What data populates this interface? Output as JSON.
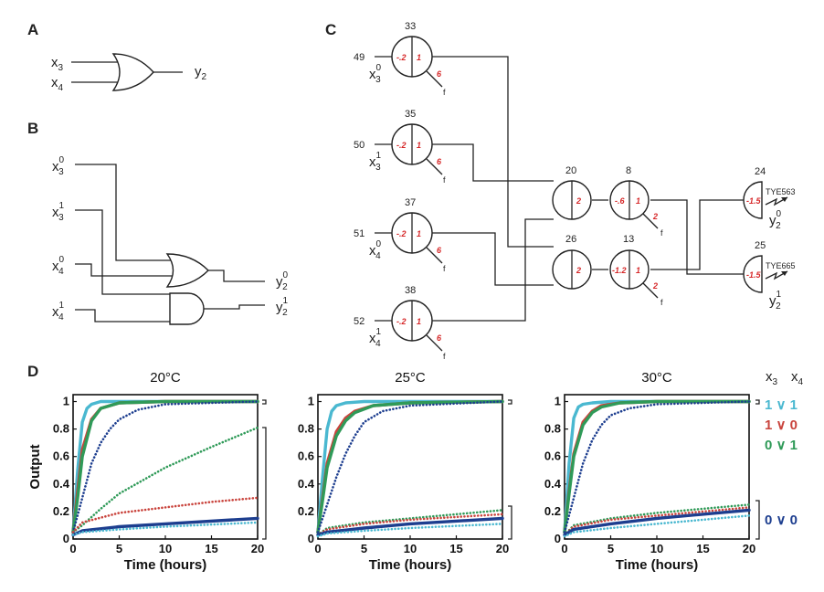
{
  "panels": {
    "a": "A",
    "b": "B",
    "c": "C",
    "d": "D"
  },
  "panel_a": {
    "in1": "x",
    "in1_sub": "3",
    "in2": "x",
    "in2_sub": "4",
    "out": "y",
    "out_sub": "2"
  },
  "panel_b": {
    "var": "x",
    "out_var": "y",
    "in1_sup": "0",
    "in1_sub": "3",
    "in2_sup": "1",
    "in2_sub": "3",
    "in3_sup": "0",
    "in3_sub": "4",
    "in4_sup": "1",
    "in4_sub": "4",
    "out1_sup": "0",
    "out1_sub": "2",
    "out2_sup": "1",
    "out2_sub": "2"
  },
  "panel_c": {
    "f": "f",
    "input_gates": [
      {
        "id": "33",
        "idx": "49",
        "left": "-.2",
        "right": "1",
        "w": "6",
        "sup": "0",
        "sub": "3"
      },
      {
        "id": "35",
        "idx": "50",
        "left": "-.2",
        "right": "1",
        "w": "6",
        "sup": "1",
        "sub": "3"
      },
      {
        "id": "37",
        "idx": "51",
        "left": "-.2",
        "right": "1",
        "w": "6",
        "sup": "0",
        "sub": "4"
      },
      {
        "id": "38",
        "idx": "52",
        "left": "-.2",
        "right": "1",
        "w": "6",
        "sup": "1",
        "sub": "4"
      }
    ],
    "mid_gates": [
      {
        "id": "20",
        "right": "2"
      },
      {
        "id": "26",
        "right": "2"
      }
    ],
    "right_gates": [
      {
        "id": "8",
        "left": "-.6",
        "right": "1",
        "w": "2"
      },
      {
        "id": "13",
        "left": "-1.2",
        "right": "1",
        "w": "2"
      }
    ],
    "reporters": [
      {
        "id": "24",
        "val": "-1.5",
        "dye": "TYE563",
        "sup": "0",
        "sub": "2"
      },
      {
        "id": "25",
        "val": "-1.5",
        "dye": "TYE665",
        "sup": "1",
        "sub": "2"
      }
    ]
  },
  "panel_d": {
    "legend_header": {
      "a": "x",
      "a_sub": "3",
      "b": "x",
      "b_sub": "4"
    },
    "legend": [
      {
        "label": "1 ∨ 1",
        "color": "#4ab8d0"
      },
      {
        "label": "1 ∨ 0",
        "color": "#c9443d"
      },
      {
        "label": "0 ∨ 1",
        "color": "#2f9a58"
      },
      {
        "label": "0 ∨ 0",
        "color": "#1d3e8f"
      }
    ]
  },
  "chart_data": [
    {
      "type": "line",
      "title": "20°C",
      "xlabel": "Time (hours)",
      "ylabel": "Output",
      "xlim": [
        0,
        20
      ],
      "ylim": [
        0,
        1.05
      ],
      "xticks": [
        "0",
        "5",
        "10",
        "15",
        "20"
      ],
      "yticks": [
        "0",
        "0.2",
        "0.4",
        "0.6",
        "0.8",
        "1"
      ],
      "series": [
        {
          "name": "1 ∨ 1 (y0)",
          "color": "#4ab8d0",
          "style": "solid",
          "x": [
            0,
            0.5,
            1,
            1.5,
            2,
            3,
            5,
            10,
            20
          ],
          "y": [
            0.05,
            0.5,
            0.85,
            0.95,
            0.98,
            1.0,
            1.0,
            1.0,
            1.0
          ]
        },
        {
          "name": "1 ∨ 0 (y0)",
          "color": "#c9443d",
          "style": "solid",
          "x": [
            0,
            0.5,
            1,
            2,
            3,
            5,
            10,
            20
          ],
          "y": [
            0.05,
            0.35,
            0.65,
            0.87,
            0.95,
            0.99,
            1.0,
            1.0
          ]
        },
        {
          "name": "0 ∨ 1 (y1)",
          "color": "#2f9a58",
          "style": "solid",
          "x": [
            0,
            0.5,
            1,
            2,
            3,
            5,
            10,
            20
          ],
          "y": [
            0.05,
            0.3,
            0.6,
            0.86,
            0.95,
            0.99,
            1.0,
            1.0
          ]
        },
        {
          "name": "0 ∨ 0 (y1)",
          "color": "#1d3e8f",
          "style": "dotted",
          "x": [
            0,
            1,
            2,
            3,
            4,
            5,
            7,
            10,
            20
          ],
          "y": [
            0.05,
            0.3,
            0.55,
            0.7,
            0.8,
            0.87,
            0.94,
            0.98,
            1.0
          ]
        },
        {
          "name": "0 ∨ 1 (y0)",
          "color": "#2f9a58",
          "style": "dotted",
          "x": [
            0,
            1,
            3,
            5,
            10,
            15,
            20
          ],
          "y": [
            0.05,
            0.1,
            0.22,
            0.33,
            0.52,
            0.67,
            0.81
          ]
        },
        {
          "name": "1 ∨ 0 (y1)",
          "color": "#c9443d",
          "style": "dotted",
          "x": [
            0,
            1,
            5,
            10,
            15,
            20
          ],
          "y": [
            0.05,
            0.12,
            0.19,
            0.23,
            0.27,
            0.3
          ]
        },
        {
          "name": "0 ∨ 0 (y0)",
          "color": "#1d3e8f",
          "style": "solid",
          "x": [
            0,
            1,
            5,
            10,
            20
          ],
          "y": [
            0.03,
            0.06,
            0.09,
            0.11,
            0.15
          ]
        },
        {
          "name": "1 ∨ 1 (y1)",
          "color": "#4ab8d0",
          "style": "dotted",
          "x": [
            0,
            1,
            5,
            10,
            20
          ],
          "y": [
            0.03,
            0.05,
            0.07,
            0.09,
            0.12
          ]
        }
      ]
    },
    {
      "type": "line",
      "title": "25°C",
      "xlabel": "Time (hours)",
      "ylabel": "",
      "xlim": [
        0,
        20
      ],
      "ylim": [
        0,
        1.05
      ],
      "xticks": [
        "0",
        "5",
        "10",
        "15",
        "20"
      ],
      "yticks": [
        "0",
        "0.2",
        "0.4",
        "0.6",
        "0.8",
        "1"
      ],
      "series": [
        {
          "name": "1 ∨ 1 (y0)",
          "color": "#4ab8d0",
          "style": "solid",
          "x": [
            0,
            0.5,
            1,
            1.5,
            2,
            3,
            5,
            10,
            20
          ],
          "y": [
            0.05,
            0.45,
            0.8,
            0.93,
            0.97,
            0.99,
            1.0,
            1.0,
            1.0
          ]
        },
        {
          "name": "1 ∨ 0 (y0)",
          "color": "#c9443d",
          "style": "solid",
          "x": [
            0,
            0.5,
            1,
            2,
            3,
            4,
            6,
            10,
            20
          ],
          "y": [
            0.05,
            0.3,
            0.55,
            0.78,
            0.88,
            0.93,
            0.97,
            0.99,
            1.0
          ]
        },
        {
          "name": "0 ∨ 1 (y1)",
          "color": "#2f9a58",
          "style": "solid",
          "x": [
            0,
            0.5,
            1,
            2,
            3,
            4,
            6,
            10,
            20
          ],
          "y": [
            0.05,
            0.28,
            0.52,
            0.75,
            0.86,
            0.92,
            0.97,
            0.99,
            1.0
          ]
        },
        {
          "name": "0 ∨ 0 (y1)",
          "color": "#1d3e8f",
          "style": "dotted",
          "x": [
            0,
            1,
            2,
            3,
            4,
            5,
            7,
            10,
            20
          ],
          "y": [
            0.05,
            0.25,
            0.45,
            0.62,
            0.75,
            0.85,
            0.93,
            0.97,
            1.0
          ]
        },
        {
          "name": "0 ∨ 1 (y0)",
          "color": "#2f9a58",
          "style": "dotted",
          "x": [
            0,
            1,
            5,
            10,
            15,
            20
          ],
          "y": [
            0.03,
            0.08,
            0.12,
            0.15,
            0.18,
            0.21
          ]
        },
        {
          "name": "1 ∨ 0 (y1)",
          "color": "#c9443d",
          "style": "dotted",
          "x": [
            0,
            1,
            5,
            10,
            15,
            20
          ],
          "y": [
            0.03,
            0.07,
            0.11,
            0.14,
            0.16,
            0.18
          ]
        },
        {
          "name": "0 ∨ 0 (y0)",
          "color": "#1d3e8f",
          "style": "solid",
          "x": [
            0,
            1,
            5,
            10,
            20
          ],
          "y": [
            0.03,
            0.05,
            0.08,
            0.11,
            0.15
          ]
        },
        {
          "name": "1 ∨ 1 (y1)",
          "color": "#4ab8d0",
          "style": "dotted",
          "x": [
            0,
            1,
            5,
            10,
            20
          ],
          "y": [
            0.02,
            0.04,
            0.06,
            0.08,
            0.11
          ]
        }
      ]
    },
    {
      "type": "line",
      "title": "30°C",
      "xlabel": "Time (hours)",
      "ylabel": "",
      "xlim": [
        0,
        20
      ],
      "ylim": [
        0,
        1.05
      ],
      "xticks": [
        "0",
        "5",
        "10",
        "15",
        "20"
      ],
      "yticks": [
        "0",
        "0.2",
        "0.4",
        "0.6",
        "0.8",
        "1"
      ],
      "series": [
        {
          "name": "1 ∨ 1 (y0)",
          "color": "#4ab8d0",
          "style": "solid",
          "x": [
            0,
            0.5,
            1,
            1.5,
            2,
            3,
            5,
            10,
            20
          ],
          "y": [
            0.05,
            0.55,
            0.88,
            0.96,
            0.98,
            0.99,
            1.0,
            1.0,
            1.0
          ]
        },
        {
          "name": "1 ∨ 0 (y0)",
          "color": "#c9443d",
          "style": "solid",
          "x": [
            0,
            0.5,
            1,
            2,
            3,
            4,
            6,
            10,
            20
          ],
          "y": [
            0.05,
            0.35,
            0.62,
            0.85,
            0.93,
            0.97,
            0.99,
            1.0,
            1.0
          ]
        },
        {
          "name": "0 ∨ 1 (y1)",
          "color": "#2f9a58",
          "style": "solid",
          "x": [
            0,
            0.5,
            1,
            2,
            3,
            4,
            6,
            10,
            20
          ],
          "y": [
            0.05,
            0.33,
            0.6,
            0.83,
            0.92,
            0.96,
            0.99,
            1.0,
            1.0
          ]
        },
        {
          "name": "0 ∨ 0 (y1)",
          "color": "#1d3e8f",
          "style": "dotted",
          "x": [
            0,
            1,
            2,
            3,
            4,
            5,
            7,
            10,
            20
          ],
          "y": [
            0.05,
            0.3,
            0.55,
            0.72,
            0.83,
            0.9,
            0.95,
            0.98,
            1.0
          ]
        },
        {
          "name": "0 ∨ 1 (y0)",
          "color": "#2f9a58",
          "style": "dotted",
          "x": [
            0,
            1,
            5,
            10,
            15,
            20
          ],
          "y": [
            0.03,
            0.1,
            0.15,
            0.19,
            0.22,
            0.25
          ]
        },
        {
          "name": "1 ∨ 0 (y1)",
          "color": "#c9443d",
          "style": "dotted",
          "x": [
            0,
            1,
            5,
            10,
            15,
            20
          ],
          "y": [
            0.03,
            0.09,
            0.14,
            0.17,
            0.2,
            0.23
          ]
        },
        {
          "name": "0 ∨ 0 (y0)",
          "color": "#1d3e8f",
          "style": "solid",
          "x": [
            0,
            1,
            5,
            10,
            20
          ],
          "y": [
            0.03,
            0.07,
            0.11,
            0.15,
            0.21
          ]
        },
        {
          "name": "1 ∨ 1 (y1)",
          "color": "#4ab8d0",
          "style": "dotted",
          "x": [
            0,
            1,
            5,
            10,
            20
          ],
          "y": [
            0.02,
            0.05,
            0.08,
            0.11,
            0.17
          ]
        }
      ]
    }
  ]
}
